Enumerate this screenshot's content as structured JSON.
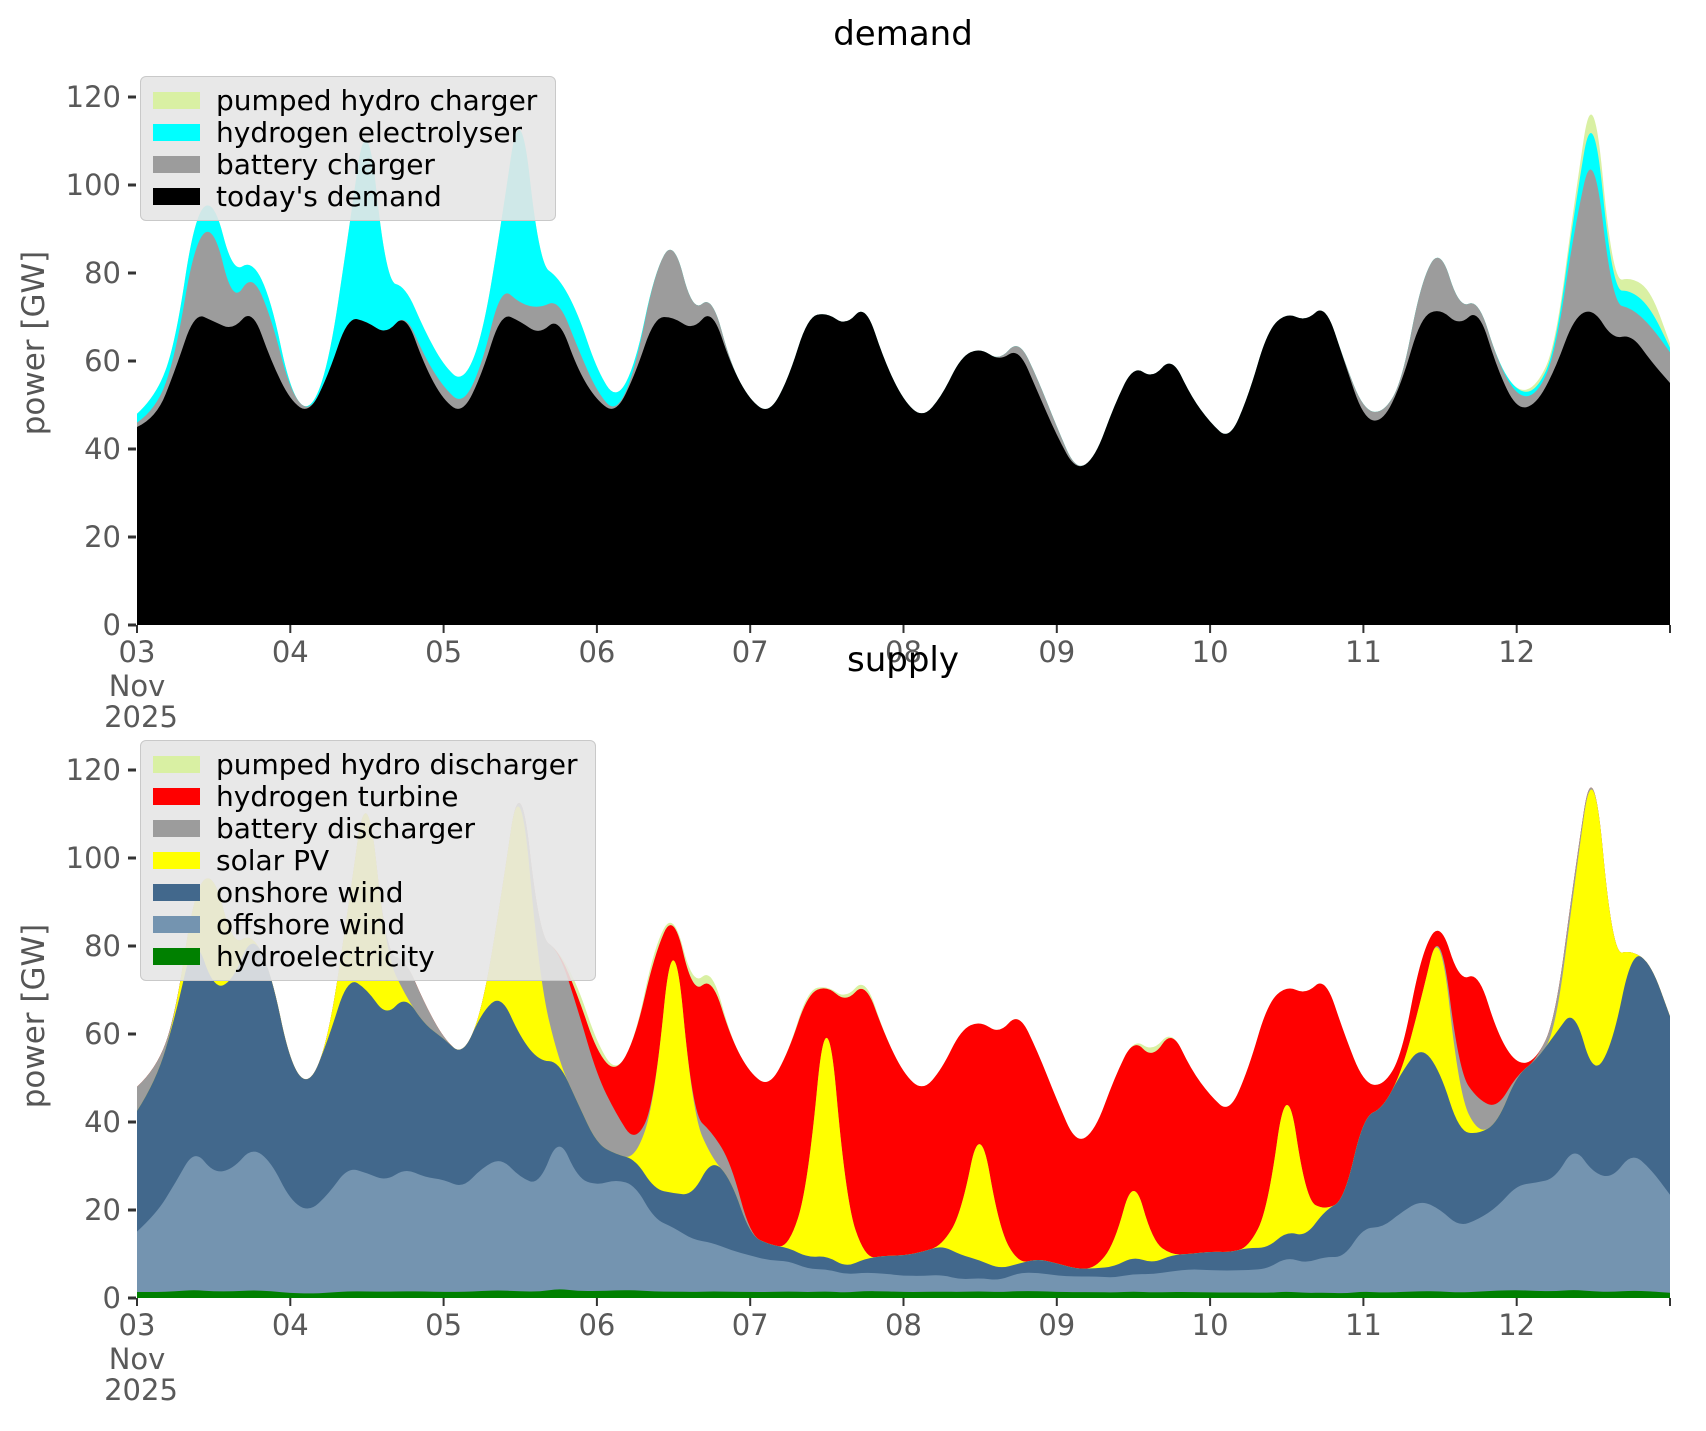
{
  "figure": {
    "month_offset": [
      "Nov",
      "2025"
    ],
    "ytick_labels": [
      "0",
      "20",
      "40",
      "60",
      "80",
      "100",
      "120"
    ],
    "xtick_labels": [
      "03",
      "04",
      "05",
      "06",
      "07",
      "08",
      "09",
      "10",
      "11",
      "12"
    ]
  },
  "chart_data": [
    {
      "type": "area",
      "stacked": true,
      "title": "demand",
      "ylabel": "power [GW]",
      "ylim": [
        0,
        128
      ],
      "yticks": [
        0,
        20,
        40,
        60,
        80,
        100,
        120
      ],
      "x_axis": {
        "start": "2025-11-03",
        "end": "2025-11-13",
        "step_days": 0.125,
        "tick_labels": [
          "03",
          "04",
          "05",
          "06",
          "07",
          "08",
          "09",
          "10",
          "11",
          "12"
        ],
        "offset_text": [
          "Nov",
          "2025"
        ]
      },
      "grid": false,
      "legend_position": "upper left",
      "legend": [
        "pumped hydro charger",
        "hydrogen electrolyser",
        "battery charger",
        "today's demand"
      ],
      "series": [
        {
          "name": "today's demand",
          "color": "#000000",
          "values": [
            45,
            47,
            58,
            71,
            69,
            67,
            72,
            60,
            51,
            48,
            57,
            70,
            69,
            66,
            71,
            59,
            51,
            48,
            57,
            71,
            69,
            66,
            70,
            58,
            51,
            48,
            57,
            70,
            70,
            67,
            72,
            59,
            51,
            48,
            56,
            70,
            71,
            68,
            73,
            60,
            51,
            47,
            52,
            61,
            63,
            60,
            63,
            53,
            43,
            35,
            38,
            50,
            59,
            56,
            61,
            52,
            46,
            42,
            52,
            67,
            71,
            69,
            73,
            60,
            47,
            46,
            55,
            70,
            72,
            68,
            72,
            58,
            49,
            50,
            58,
            70,
            72,
            65,
            66,
            60,
            55
          ]
        },
        {
          "name": "battery charger",
          "color": "#9c9c9c",
          "values": [
            1,
            2,
            3,
            16,
            22,
            6,
            8,
            10,
            2,
            0,
            0,
            0,
            0,
            0,
            0,
            2,
            3,
            2,
            2,
            6,
            4,
            6,
            4,
            5,
            2,
            0,
            1,
            10,
            18,
            4,
            3,
            0,
            0,
            0,
            0,
            0,
            0,
            0,
            0,
            0,
            0,
            0,
            0,
            0,
            0,
            0,
            2,
            3,
            2,
            0,
            0,
            0,
            0,
            0,
            0,
            0,
            0,
            0,
            0,
            0,
            0,
            0,
            0,
            0,
            2,
            2,
            0,
            8,
            14,
            4,
            2,
            2,
            3,
            2,
            3,
            20,
            38,
            8,
            6,
            8,
            7
          ]
        },
        {
          "name": "hydrogen electrolyser",
          "color": "#00ffff",
          "values": [
            2,
            3,
            3,
            6,
            6,
            7,
            3,
            4,
            0,
            0,
            2,
            18,
            50,
            12,
            6,
            6,
            5,
            5,
            6,
            14,
            48,
            10,
            5,
            8,
            5,
            3,
            1,
            0,
            0,
            0,
            0,
            0,
            0,
            0,
            0,
            0,
            0,
            0,
            0,
            0,
            0,
            0,
            0,
            0,
            0,
            0,
            0,
            0,
            0,
            0,
            0,
            0,
            0,
            0,
            0,
            0,
            0,
            0,
            0,
            0,
            0,
            0,
            0,
            0,
            0,
            0,
            0,
            0,
            0,
            0,
            0,
            0,
            1,
            1,
            1,
            4,
            10,
            3,
            4,
            4,
            1
          ]
        },
        {
          "name": "pumped hydro charger",
          "color": "#d9f0a3",
          "values": [
            0,
            0,
            0,
            0,
            0,
            0,
            0,
            0,
            0,
            0,
            0,
            0,
            0,
            0,
            0,
            0,
            0,
            0,
            0,
            0,
            0,
            0,
            0,
            0,
            0,
            0,
            0,
            0,
            0,
            0,
            0,
            0,
            0,
            0,
            0,
            0,
            0,
            0,
            0,
            0,
            0,
            0,
            0,
            0,
            0,
            0,
            0,
            0,
            0,
            0,
            0,
            0,
            0,
            0,
            0,
            0,
            0,
            0,
            0,
            0,
            0,
            0,
            0,
            0,
            0,
            0,
            0,
            0,
            0,
            0,
            0,
            0,
            0,
            1,
            1,
            2,
            5,
            2,
            3,
            4,
            1
          ]
        }
      ]
    },
    {
      "type": "area",
      "stacked": true,
      "title": "supply",
      "ylabel": "power [GW]",
      "ylim": [
        0,
        128
      ],
      "yticks": [
        0,
        20,
        40,
        60,
        80,
        100,
        120
      ],
      "x_axis": {
        "start": "2025-11-03",
        "end": "2025-11-13",
        "step_days": 0.125,
        "tick_labels": [
          "03",
          "04",
          "05",
          "06",
          "07",
          "08",
          "09",
          "10",
          "11",
          "12"
        ],
        "offset_text": [
          "Nov",
          "2025"
        ]
      },
      "grid": false,
      "legend_position": "upper left",
      "legend": [
        "pumped hydro discharger",
        "hydrogen turbine",
        "battery discharger",
        "solar PV",
        "onshore wind",
        "offshore wind",
        "hydroelectricity"
      ],
      "balance_note": "supply stack total equals demand stack total at every timestep",
      "series": [
        {
          "name": "hydroelectricity",
          "color": "#008000",
          "values_constant": 1.5
        },
        {
          "name": "offshore wind",
          "color": "#7494b0",
          "values": [
            15,
            20,
            24,
            26,
            27,
            28,
            28,
            28,
            28,
            28,
            28,
            28,
            27,
            27,
            27,
            27,
            27,
            26,
            26,
            26,
            26,
            25,
            25,
            24,
            23,
            22,
            20,
            17,
            15,
            13,
            11,
            10,
            9,
            8,
            7,
            6,
            5,
            5,
            4,
            4,
            4,
            4,
            4,
            3,
            3,
            3,
            4,
            4,
            4,
            4,
            4,
            4,
            4,
            5,
            5,
            6,
            6,
            6,
            6,
            7,
            8,
            9,
            10,
            12,
            15,
            18,
            20,
            20,
            19,
            18,
            17,
            17,
            20,
            23,
            25,
            26,
            27,
            28,
            28,
            28,
            28
          ]
        },
        {
          "name": "onshore wind",
          "color": "#42688c",
          "values": [
            30,
            34,
            37,
            40,
            42,
            43,
            42,
            41,
            41,
            43,
            44,
            43,
            42,
            40,
            38,
            36,
            34,
            33,
            33,
            32,
            32,
            29,
            12,
            16,
            9,
            5,
            5,
            7,
            8,
            11,
            19,
            17,
            5,
            4,
            3,
            3,
            3,
            2,
            3,
            4,
            5,
            6,
            7,
            6,
            4,
            3,
            2,
            3,
            3,
            2,
            2,
            3,
            4,
            3,
            4,
            4,
            5,
            5,
            6,
            6,
            6,
            8,
            13,
            19,
            26,
            33,
            35,
            34,
            32,
            26,
            20,
            17,
            21,
            26,
            32,
            25,
            22,
            33,
            41,
            47,
            51
          ]
        },
        {
          "name": "solar PV",
          "color": "#ffff00",
          "values": [
            0,
            0,
            0,
            8,
            27,
            8,
            0,
            0,
            0,
            0,
            0,
            15,
            49,
            15,
            0,
            0,
            0,
            0,
            0,
            19,
            62,
            19,
            0,
            0,
            0,
            0,
            0,
            20,
            66,
            20,
            0,
            0,
            0,
            0,
            0,
            18,
            61,
            18,
            0,
            0,
            0,
            0,
            0,
            10,
            32,
            10,
            0,
            0,
            0,
            0,
            0,
            6,
            19,
            6,
            0,
            0,
            0,
            0,
            0,
            11,
            37,
            11,
            0,
            0,
            0,
            0,
            0,
            10,
            35,
            10,
            0,
            0,
            0,
            0,
            0,
            22,
            75,
            22,
            0,
            0,
            0
          ]
        },
        {
          "name": "battery discharger",
          "color": "#9c9c9c",
          "values": [
            6,
            3,
            0,
            0,
            0,
            0,
            0,
            0,
            0,
            0,
            0,
            0,
            0,
            0,
            8,
            5,
            0,
            0,
            0,
            0,
            0,
            10,
            18,
            20,
            15,
            8,
            3,
            0,
            0,
            0,
            6,
            4,
            0,
            0,
            0,
            0,
            0,
            0,
            0,
            0,
            0,
            0,
            0,
            0,
            0,
            0,
            0,
            0,
            0,
            0,
            0,
            0,
            0,
            0,
            0,
            0,
            0,
            0,
            0,
            0,
            0,
            0,
            0,
            0,
            0,
            0,
            0,
            0,
            0,
            6,
            8,
            3,
            0,
            0,
            3,
            2,
            0,
            0,
            0,
            0,
            0
          ]
        },
        {
          "name": "hydrogen turbine",
          "color": "#ff0000",
          "values": [
            0,
            0,
            0,
            0,
            0,
            0,
            0,
            0,
            0,
            0,
            0,
            0,
            0,
            0,
            0,
            0,
            0,
            0,
            0,
            0,
            0,
            0,
            0,
            3,
            5,
            8,
            20,
            35,
            0,
            30,
            35,
            30,
            40,
            40,
            45,
            50,
            0,
            55,
            60,
            50,
            45,
            40,
            42,
            45,
            22,
            50,
            55,
            45,
            40,
            32,
            35,
            45,
            31,
            50,
            55,
            48,
            42,
            38,
            48,
            60,
            20,
            62,
            65,
            55,
            8,
            6,
            4,
            10,
            0,
            25,
            30,
            15,
            2,
            0,
            0,
            0,
            0,
            0,
            0,
            0,
            0
          ]
        },
        {
          "name": "pumped hydro discharger",
          "color": "#d9f0a3",
          "values": [
            0,
            0,
            0,
            0,
            0,
            0,
            0,
            0,
            0,
            0,
            0,
            0,
            0,
            0,
            0,
            0,
            0,
            0,
            0,
            0,
            0,
            0,
            0,
            2,
            2,
            0,
            0,
            2,
            0,
            2,
            2,
            0,
            0,
            0,
            0,
            1,
            0,
            1,
            1,
            0,
            0,
            0,
            0,
            0,
            0,
            0,
            0,
            0,
            0,
            0,
            0,
            0,
            0,
            2,
            0,
            0,
            0,
            0,
            0,
            0,
            0,
            0,
            0,
            0,
            0,
            0,
            0,
            0,
            0,
            0,
            0,
            0,
            0,
            0,
            0,
            0,
            0,
            0,
            0,
            0,
            0
          ]
        }
      ]
    }
  ]
}
